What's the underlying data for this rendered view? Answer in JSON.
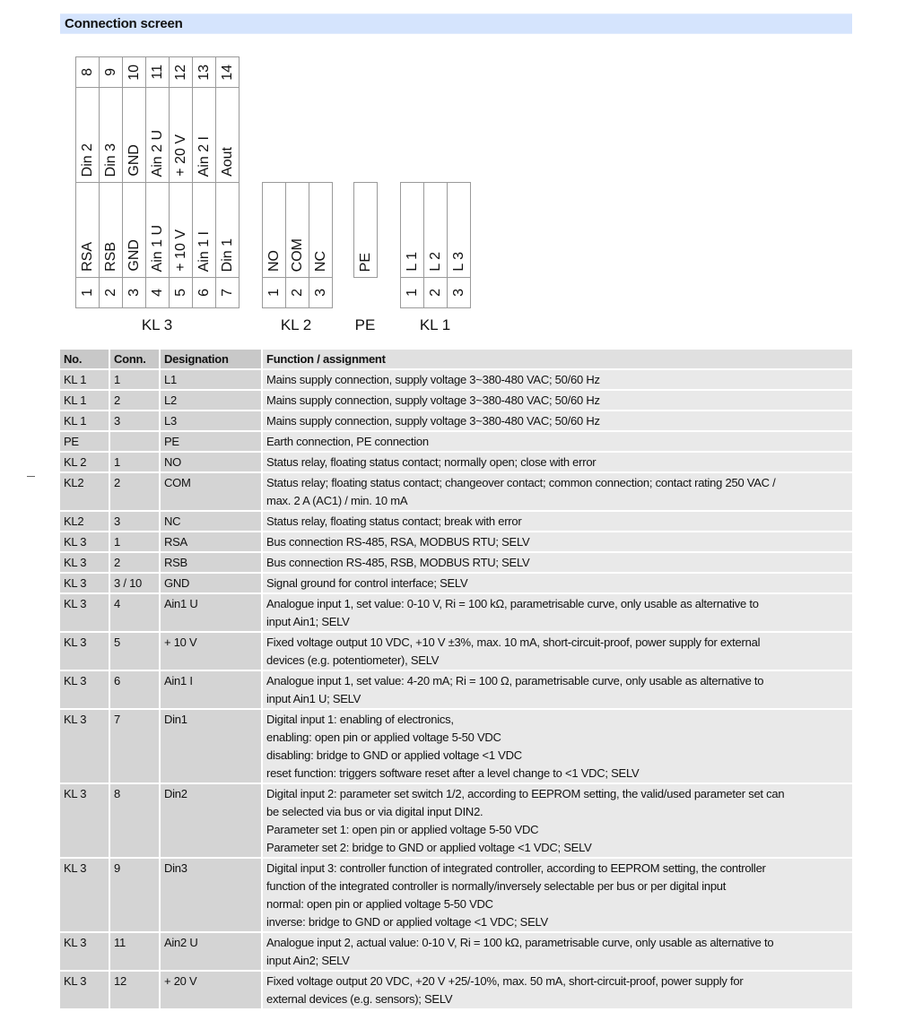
{
  "title": "Connection screen",
  "diagram": {
    "blocks": [
      {
        "name": "KL 3",
        "top_row": {
          "numbers": [
            "8",
            "9",
            "10",
            "11",
            "12",
            "13",
            "14"
          ],
          "labels": [
            "Din 2",
            "Din 3",
            "GND",
            "Ain 2 U",
            "+ 20 V",
            "Ain 2 I",
            "Aout"
          ]
        },
        "bottom_row": {
          "labels": [
            "RSA",
            "RSB",
            "GND",
            "Ain 1 U",
            "+ 10 V",
            "Ain 1 I",
            "Din 1"
          ],
          "numbers": [
            "1",
            "2",
            "3",
            "4",
            "5",
            "6",
            "7"
          ]
        }
      },
      {
        "name": "KL 2",
        "bottom_row": {
          "labels": [
            "NO",
            "COM",
            "NC"
          ],
          "numbers": [
            "1",
            "2",
            "3"
          ]
        }
      },
      {
        "name": "PE",
        "bottom_row": {
          "labels": [
            "PE"
          ],
          "numbers": []
        }
      },
      {
        "name": "KL 1",
        "bottom_row": {
          "labels": [
            "L 1",
            "L 2",
            "L 3"
          ],
          "numbers": [
            "1",
            "2",
            "3"
          ]
        }
      }
    ]
  },
  "table": {
    "headers": [
      "No.",
      "Conn.",
      "Designation",
      "Function / assignment"
    ],
    "rows": [
      [
        "KL 1",
        "1",
        "L1",
        "Mains supply connection, supply voltage 3~380-480 VAC; 50/60 Hz"
      ],
      [
        "KL 1",
        "2",
        "L2",
        "Mains supply connection, supply voltage 3~380-480 VAC; 50/60 Hz"
      ],
      [
        "KL 1",
        "3",
        "L3",
        "Mains supply connection, supply voltage 3~380-480 VAC; 50/60 Hz"
      ],
      [
        "PE",
        "",
        "PE",
        "Earth connection, PE connection"
      ],
      [
        "KL 2",
        "1",
        "NO",
        "Status relay, floating status contact; normally open; close with error"
      ],
      [
        "KL2",
        "2",
        "COM",
        "Status relay; floating status contact; changeover contact; common connection; contact rating 250 VAC /\nmax. 2 A (AC1) / min. 10 mA"
      ],
      [
        "KL2",
        "3",
        "NC",
        "Status relay, floating status contact; break with error"
      ],
      [
        "KL 3",
        "1",
        "RSA",
        "Bus connection RS-485, RSA, MODBUS RTU; SELV"
      ],
      [
        "KL 3",
        "2",
        "RSB",
        "Bus connection RS-485, RSB, MODBUS RTU; SELV"
      ],
      [
        "KL 3",
        "3 / 10",
        "GND",
        "Signal ground for control interface; SELV"
      ],
      [
        "KL 3",
        "4",
        "Ain1 U",
        "Analogue input 1, set value: 0-10 V, Ri = 100 kΩ, parametrisable curve, only usable as alternative to\ninput Ain1; SELV"
      ],
      [
        "KL 3",
        "5",
        "+ 10 V",
        "Fixed voltage output 10 VDC, +10 V ±3%, max. 10 mA, short-circuit-proof, power supply for external\ndevices (e.g. potentiometer), SELV"
      ],
      [
        "KL 3",
        "6",
        "Ain1 I",
        "Analogue input 1, set value: 4-20 mA; Ri = 100 Ω, parametrisable curve, only usable as alternative to\ninput Ain1 U; SELV"
      ],
      [
        "KL 3",
        "7",
        "Din1",
        "Digital input 1: enabling of electronics,\nenabling: open pin or applied voltage 5-50 VDC\ndisabling: bridge to GND or applied voltage <1 VDC\nreset function: triggers software reset after a level change to <1 VDC; SELV"
      ],
      [
        "KL 3",
        "8",
        "Din2",
        "Digital input 2: parameter set switch 1/2, according to EEPROM setting, the valid/used parameter set can\nbe selected via bus or via digital input DIN2.\nParameter set 1: open pin or applied voltage 5-50 VDC\nParameter set 2: bridge to GND or applied voltage <1 VDC; SELV"
      ],
      [
        "KL 3",
        "9",
        "Din3",
        "Digital input 3: controller function of integrated controller, according to EEPROM setting, the controller\nfunction of the integrated controller is normally/inversely selectable per bus or per digital input\nnormal: open pin or applied voltage 5-50 VDC\ninverse: bridge to GND or applied voltage <1 VDC; SELV"
      ],
      [
        "KL 3",
        "11",
        "Ain2 U",
        "Analogue input 2, actual value: 0-10 V, Ri = 100 kΩ, parametrisable curve, only usable as alternative to\ninput Ain2; SELV"
      ],
      [
        "KL 3",
        "12",
        "+ 20 V",
        "Fixed voltage output 20 VDC, +20 V +25/-10%, max. 50 mA, short-circuit-proof, power supply for\nexternal devices (e.g. sensors); SELV"
      ]
    ]
  }
}
